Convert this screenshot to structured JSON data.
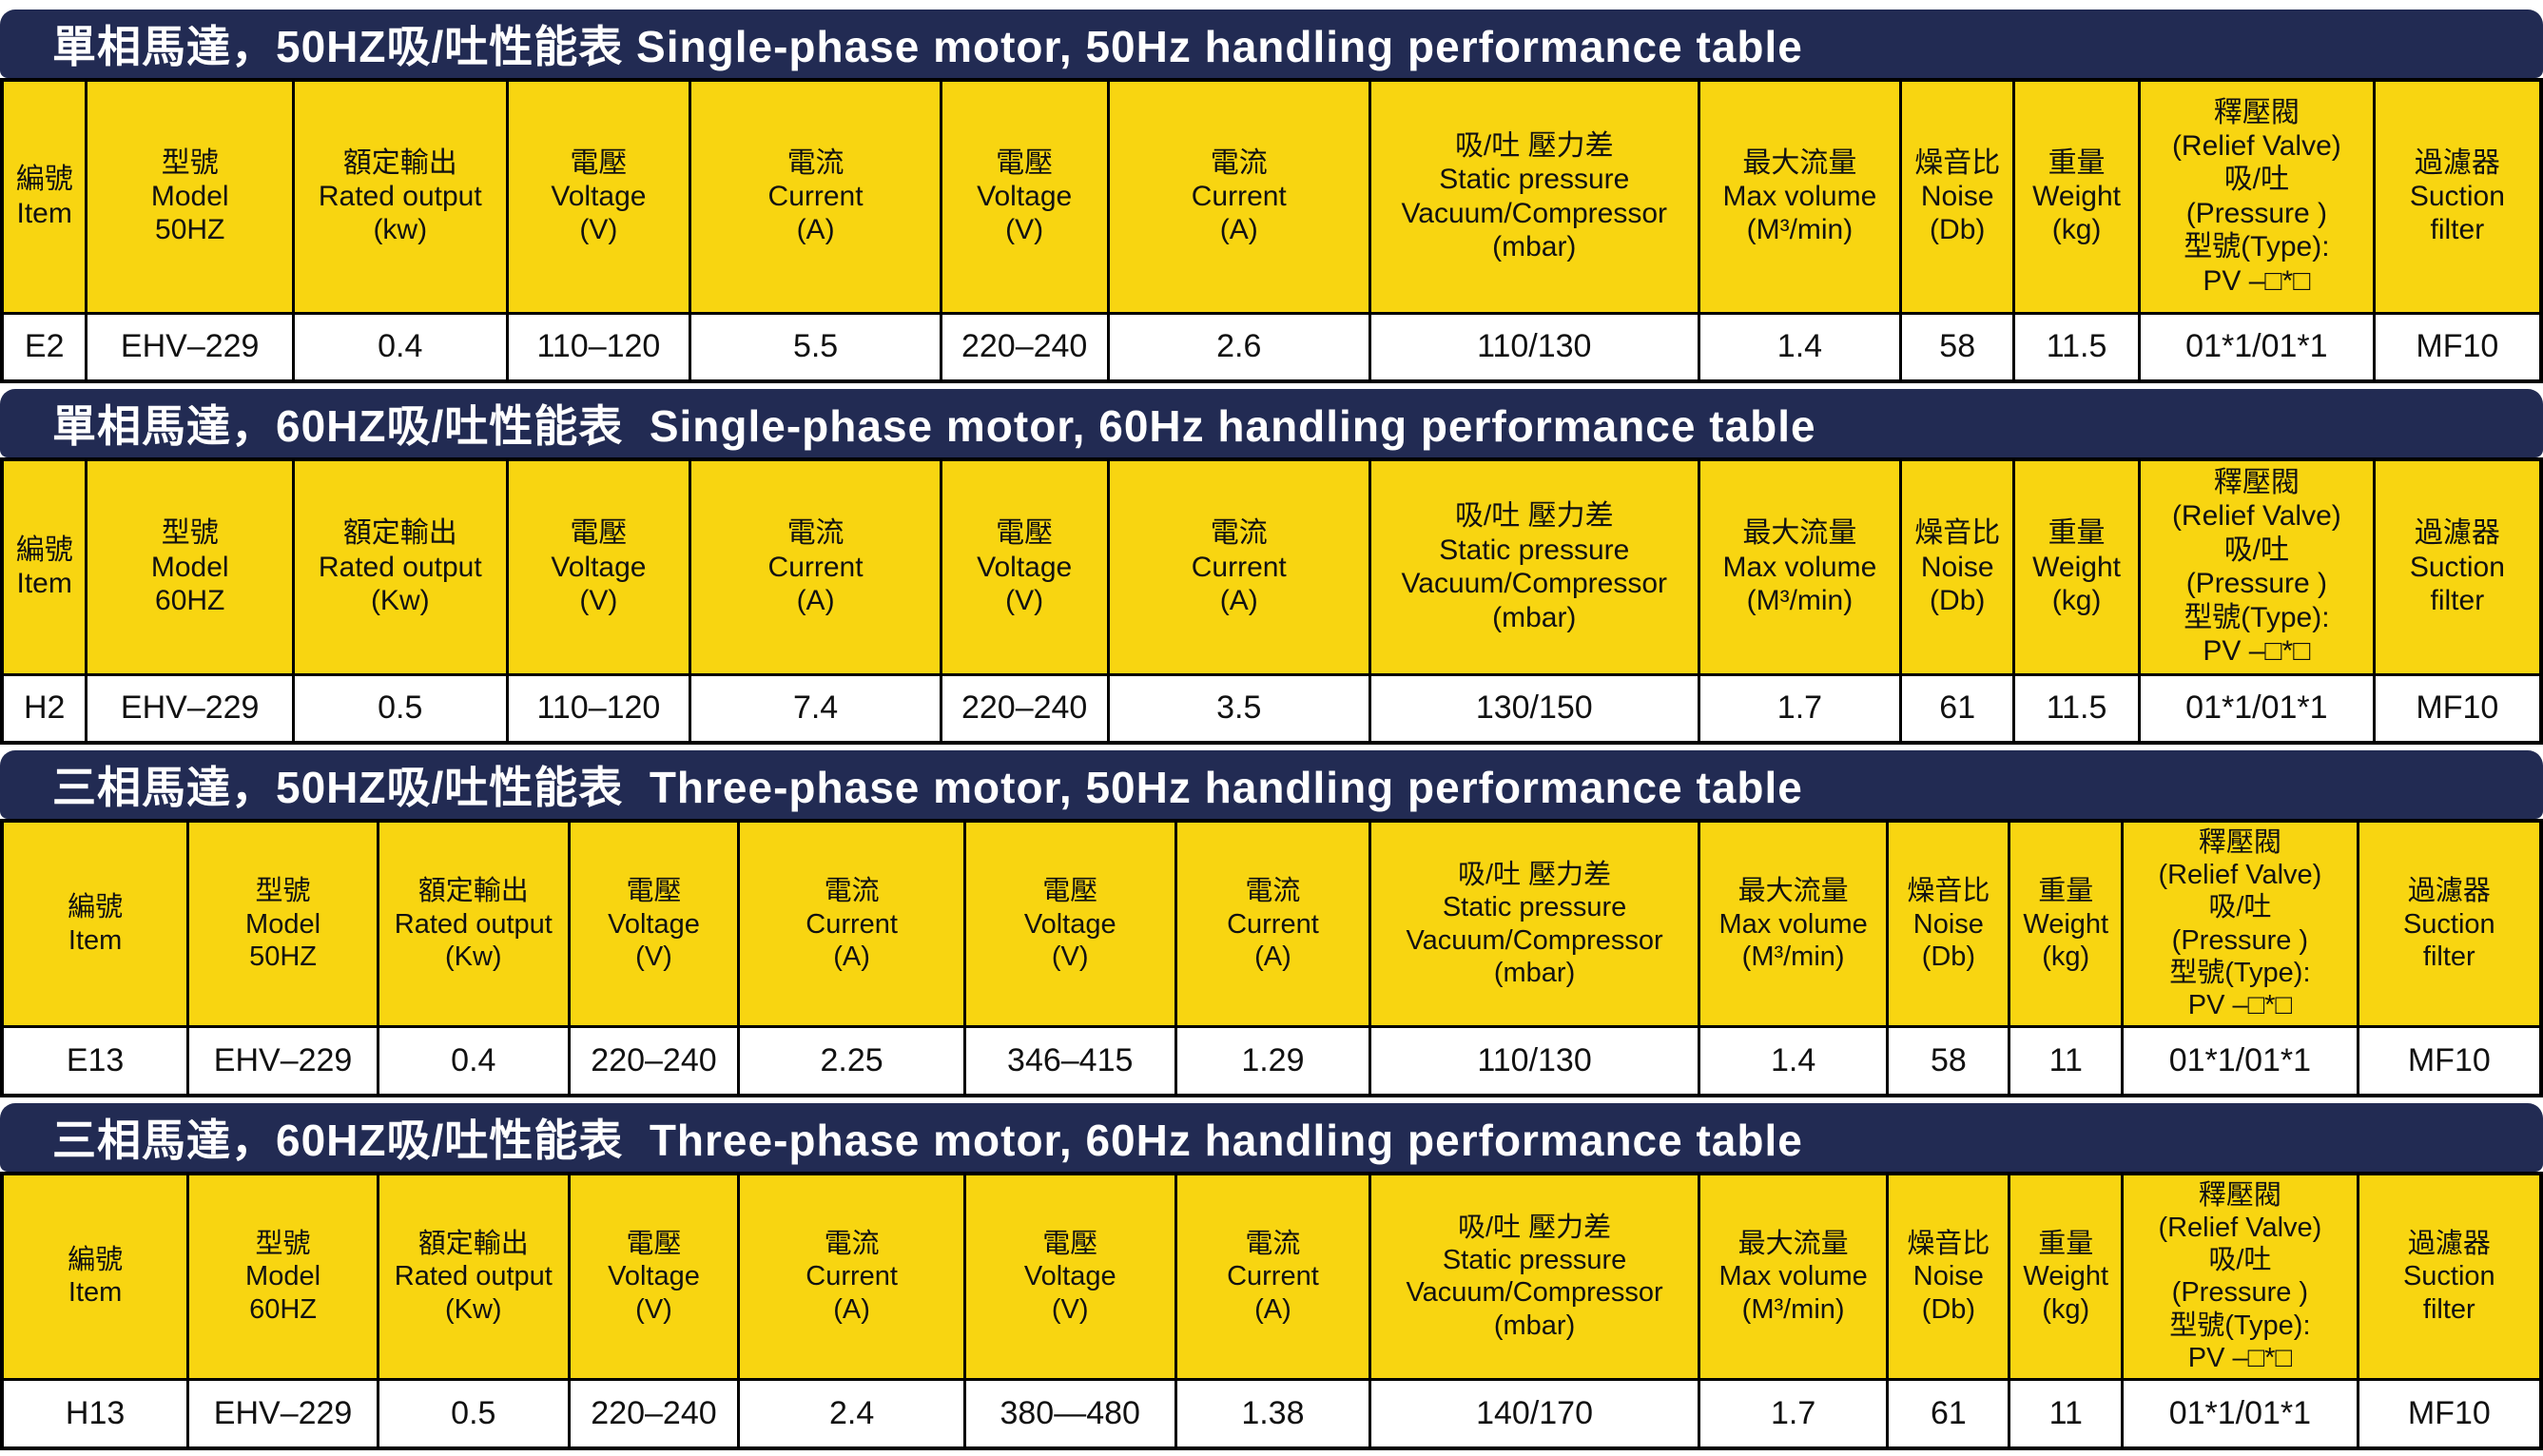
{
  "colors": {
    "title_bg": "#222b53",
    "title_text": "#ffffff",
    "header_bg": "#f8d511",
    "cell_bg": "#ffffff",
    "border": "#000000",
    "text": "#111111"
  },
  "tables": [
    {
      "title": "單相馬達，50HZ吸/吐性能表 Single-phase motor, 50Hz handling performance table",
      "columns": [
        {
          "label": "編號\nItem"
        },
        {
          "label": "型號\nModel\n50HZ"
        },
        {
          "label": "額定輸出\nRated output\n(kw)"
        },
        {
          "label": "電壓\nVoltage\n(V)"
        },
        {
          "label": "電流\nCurrent\n(A)"
        },
        {
          "label": "電壓\nVoltage\n(V)"
        },
        {
          "label": "電流\nCurrent\n(A)"
        },
        {
          "label": "吸/吐 壓力差\nStatic pressure\nVacuum/Compressor\n(mbar)"
        },
        {
          "label": "最大流量\nMax volume\n(M³/min)"
        },
        {
          "label": "燥音比\nNoise\n(Db)"
        },
        {
          "label": "重量\nWeight\n(kg)"
        },
        {
          "label": "釋壓閥\n(Relief Valve)\n吸/吐\n(Pressure )\n型號(Type):\nPV –□*□"
        },
        {
          "label": "過濾器\nSuction\nfilter"
        }
      ],
      "rows": [
        [
          "E2",
          "EHV–229",
          "0.4",
          "110–120",
          "5.5",
          "220–240",
          "2.6",
          "110/130",
          "1.4",
          "58",
          "11.5",
          "01*1/01*1",
          "MF10"
        ]
      ]
    },
    {
      "title": "單相馬達，60HZ吸/吐性能表  Single-phase motor, 60Hz handling performance table",
      "columns": [
        {
          "label": "編號\nItem"
        },
        {
          "label": "型號\nModel\n60HZ"
        },
        {
          "label": "額定輸出\nRated output\n(Kw)"
        },
        {
          "label": "電壓\nVoltage\n(V)"
        },
        {
          "label": "電流\nCurrent\n(A)"
        },
        {
          "label": "電壓\nVoltage\n(V)"
        },
        {
          "label": "電流\nCurrent\n(A)"
        },
        {
          "label": "吸/吐 壓力差\nStatic pressure\nVacuum/Compressor\n(mbar)"
        },
        {
          "label": "最大流量\nMax volume\n(M³/min)"
        },
        {
          "label": "燥音比\nNoise\n(Db)"
        },
        {
          "label": "重量\nWeight\n(kg)"
        },
        {
          "label": "釋壓閥\n(Relief Valve)\n吸/吐\n(Pressure )\n型號(Type):\nPV –□*□"
        },
        {
          "label": "過濾器\nSuction\nfilter"
        }
      ],
      "rows": [
        [
          "H2",
          "EHV–229",
          "0.5",
          "110–120",
          "7.4",
          "220–240",
          "3.5",
          "130/150",
          "1.7",
          "61",
          "11.5",
          "01*1/01*1",
          "MF10"
        ]
      ]
    },
    {
      "title": "三相馬達，50HZ吸/吐性能表  Three-phase motor, 50Hz handling performance table",
      "columns": [
        {
          "label": "編號\nItem"
        },
        {
          "label": "型號\nModel\n50HZ"
        },
        {
          "label": "額定輸出\nRated output\n(Kw)"
        },
        {
          "label": "電壓\nVoltage\n(V)"
        },
        {
          "label": "電流\nCurrent\n(A)"
        },
        {
          "label": "電壓\nVoltage\n(V)"
        },
        {
          "label": "電流\nCurrent\n(A)"
        },
        {
          "label": "吸/吐 壓力差\nStatic pressure\nVacuum/Compressor\n(mbar)"
        },
        {
          "label": "最大流量\nMax volume\n(M³/min)"
        },
        {
          "label": "燥音比\nNoise\n(Db)"
        },
        {
          "label": "重量\nWeight\n(kg)"
        },
        {
          "label": "釋壓閥\n(Relief Valve)\n吸/吐\n(Pressure )\n型號(Type):\nPV –□*□"
        },
        {
          "label": "過濾器\nSuction\nfilter"
        }
      ],
      "rows": [
        [
          "E13",
          "EHV–229",
          "0.4",
          "220–240",
          "2.25",
          "346–415",
          "1.29",
          "110/130",
          "1.4",
          "58",
          "11",
          "01*1/01*1",
          "MF10"
        ]
      ]
    },
    {
      "title": "三相馬達，60HZ吸/吐性能表  Three-phase motor, 60Hz handling performance table",
      "columns": [
        {
          "label": "編號\nItem"
        },
        {
          "label": "型號\nModel\n60HZ"
        },
        {
          "label": "額定輸出\nRated output\n(Kw)"
        },
        {
          "label": "電壓\nVoltage\n(V)"
        },
        {
          "label": "電流\nCurrent\n(A)"
        },
        {
          "label": "電壓\nVoltage\n(V)"
        },
        {
          "label": "電流\nCurrent\n(A)"
        },
        {
          "label": "吸/吐 壓力差\nStatic pressure\nVacuum/Compressor\n(mbar)"
        },
        {
          "label": "最大流量\nMax volume\n(M³/min)"
        },
        {
          "label": "燥音比\nNoise\n(Db)"
        },
        {
          "label": "重量\nWeight\n(kg)"
        },
        {
          "label": "釋壓閥\n(Relief Valve)\n吸/吐\n(Pressure )\n型號(Type):\nPV –□*□"
        },
        {
          "label": "過濾器\nSuction\nfilter"
        }
      ],
      "rows": [
        [
          "H13",
          "EHV–229",
          "0.5",
          "220–240",
          "2.4",
          "380—480",
          "1.38",
          "140/170",
          "1.7",
          "61",
          "11",
          "01*1/01*1",
          "MF10"
        ]
      ]
    }
  ]
}
